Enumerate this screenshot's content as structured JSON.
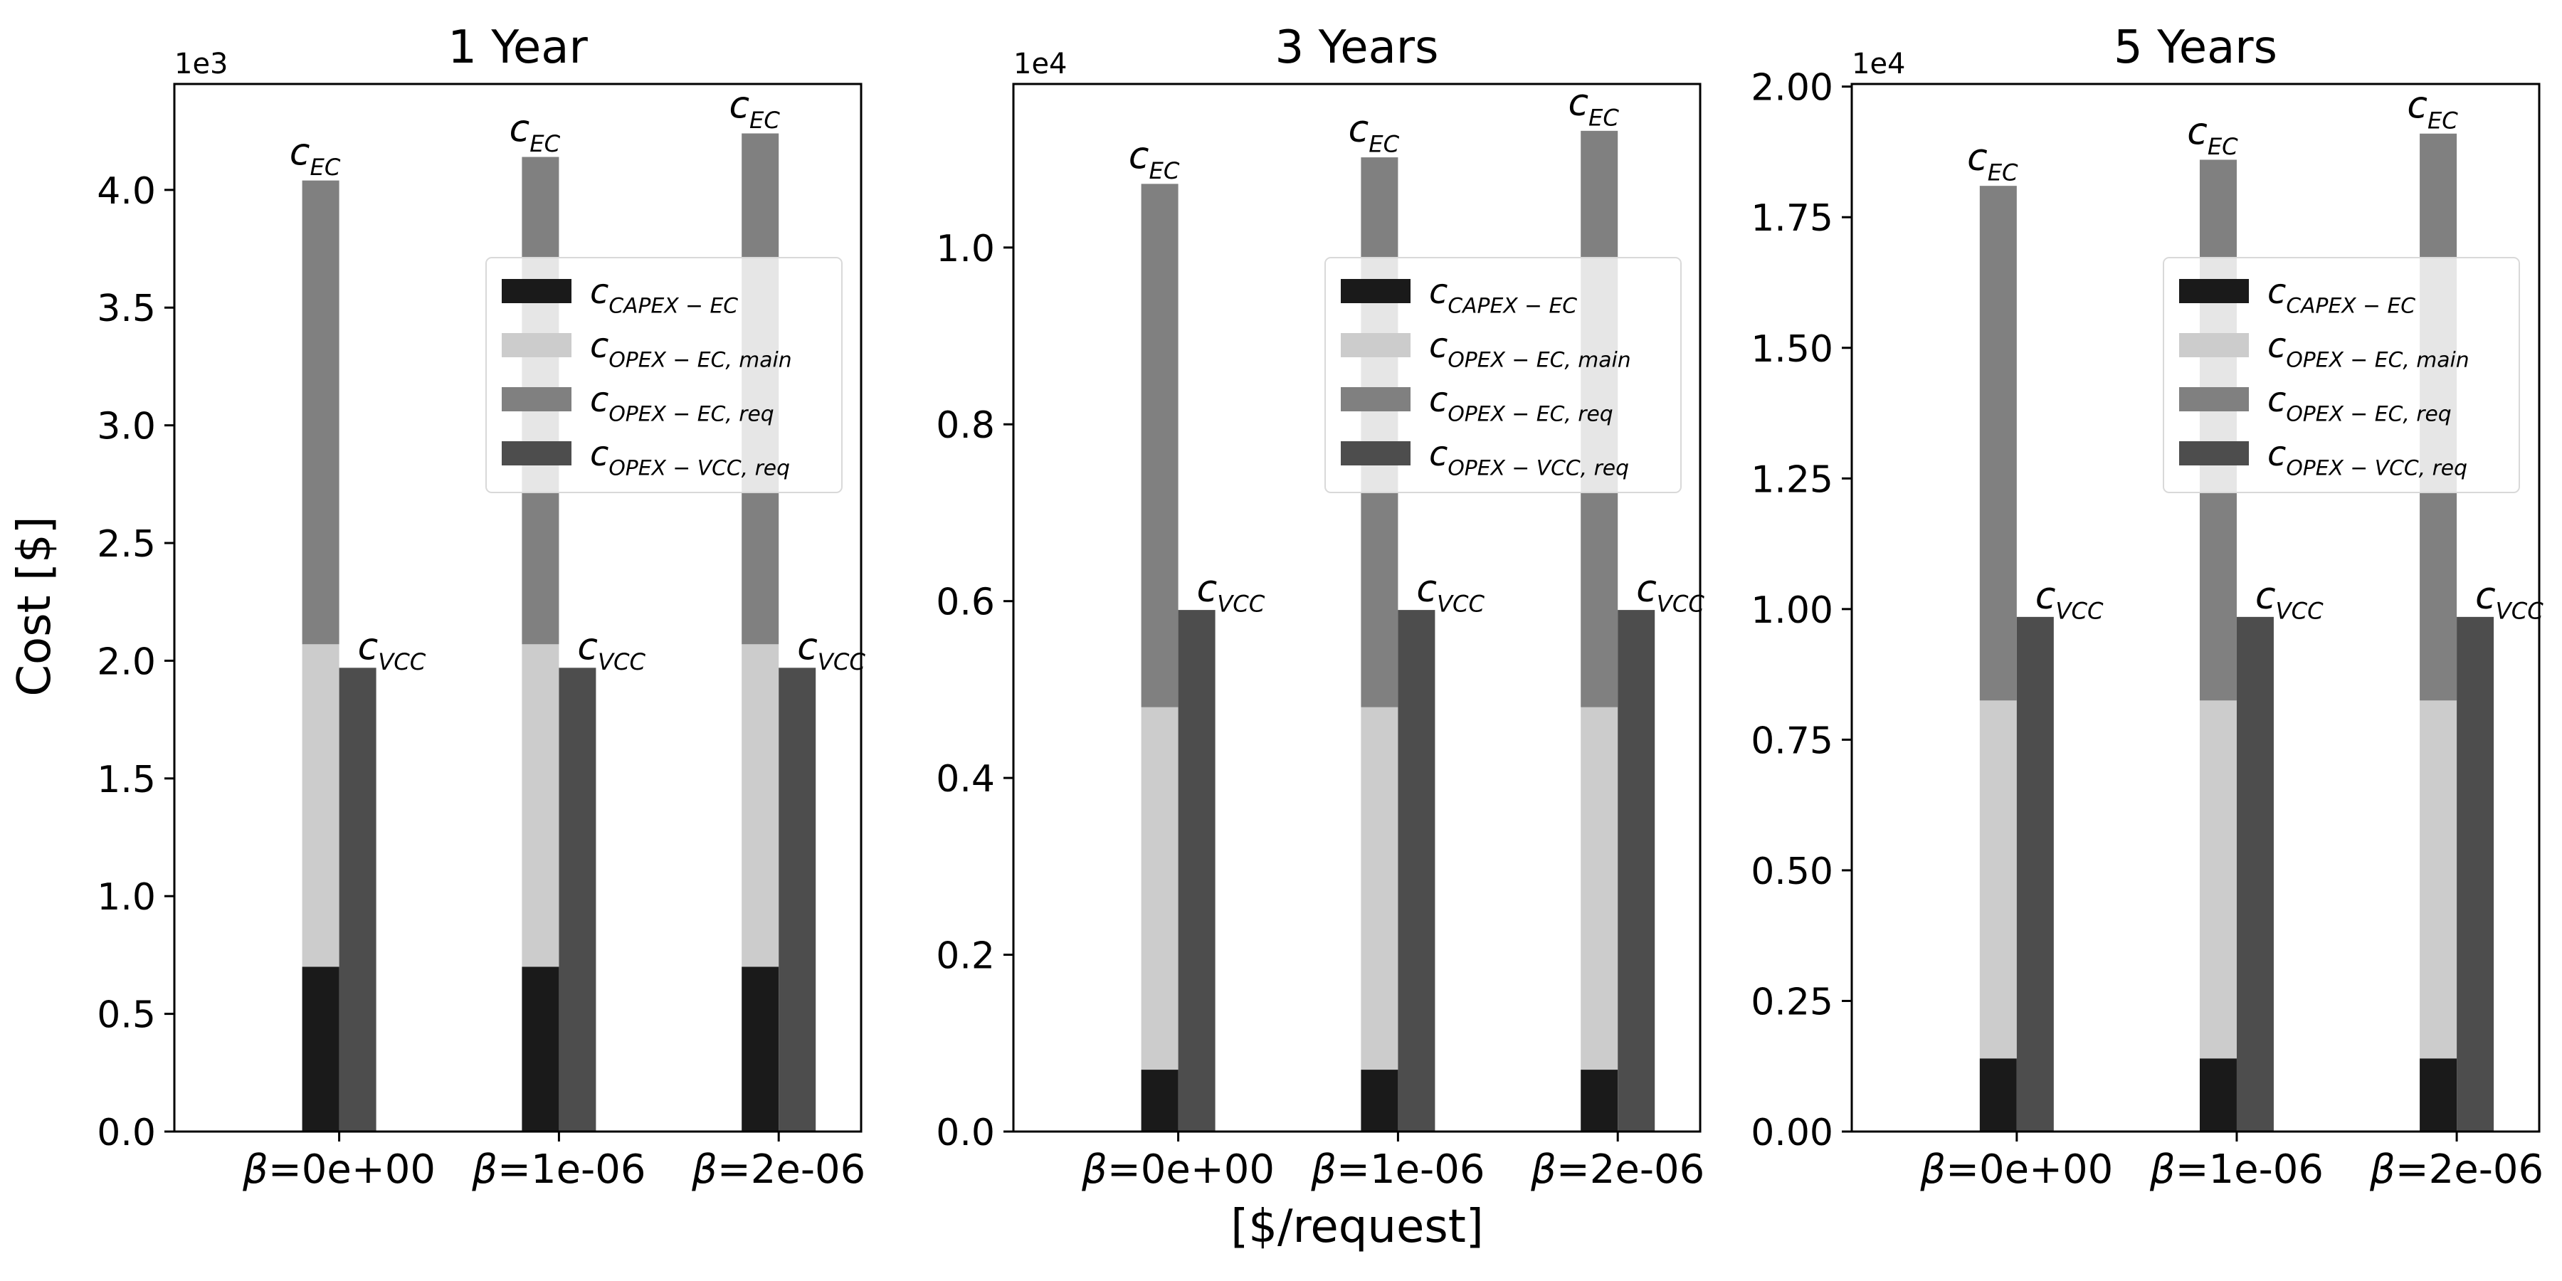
{
  "figure": {
    "ylabel": "Cost [$]",
    "xlabel": "[$/request]"
  },
  "chart_data": [
    {
      "type": "bar",
      "title": "1 Year",
      "categories": [
        "β=0e+00",
        "β=1e-06",
        "β=2e-06"
      ],
      "offset_text": "1e3",
      "ylim": [
        0,
        4.45
      ],
      "yticks": [
        "0.0",
        "0.5",
        "1.0",
        "1.5",
        "2.0",
        "2.5",
        "3.0",
        "3.5",
        "4.0"
      ],
      "ytick_values": [
        0,
        0.5,
        1.0,
        1.5,
        2.0,
        2.5,
        3.0,
        3.5,
        4.0
      ],
      "grid": false,
      "legend_placement": "center-right",
      "stacks": [
        {
          "label_main": "c",
          "label_sub": "EC",
          "series": [
            {
              "name_main": "c",
              "name_sub": "CAPEX − EC",
              "color": "#1a1a1a",
              "values": [
                0.7,
                0.7,
                0.7
              ]
            },
            {
              "name_main": "c",
              "name_sub": "OPEX − EC, main",
              "color": "#cccccc",
              "values": [
                1.37,
                1.37,
                1.37
              ]
            },
            {
              "name_main": "c",
              "name_sub": "OPEX − EC, req",
              "color": "#808080",
              "values": [
                1.97,
                2.07,
                2.17
              ]
            }
          ]
        },
        {
          "label_main": "c",
          "label_sub": "VCC",
          "series": [
            {
              "name_main": "c",
              "name_sub": "OPEX − VCC, req",
              "color": "#4d4d4d",
              "values": [
                1.97,
                1.97,
                1.97
              ]
            }
          ]
        }
      ]
    },
    {
      "type": "bar",
      "title": "3 Years",
      "categories": [
        "β=0e+00",
        "β=1e-06",
        "β=2e-06"
      ],
      "offset_text": "1e4",
      "ylim": [
        0,
        1.185
      ],
      "yticks": [
        "0.0",
        "0.2",
        "0.4",
        "0.6",
        "0.8",
        "1.0"
      ],
      "ytick_values": [
        0,
        0.2,
        0.4,
        0.6,
        0.8,
        1.0
      ],
      "grid": false,
      "legend_placement": "center-right",
      "stacks": [
        {
          "label_main": "c",
          "label_sub": "EC",
          "series": [
            {
              "name_main": "c",
              "name_sub": "CAPEX − EC",
              "color": "#1a1a1a",
              "values": [
                0.07,
                0.07,
                0.07
              ]
            },
            {
              "name_main": "c",
              "name_sub": "OPEX − EC, main",
              "color": "#cccccc",
              "values": [
                0.41,
                0.41,
                0.41
              ]
            },
            {
              "name_main": "c",
              "name_sub": "OPEX − EC, req",
              "color": "#808080",
              "values": [
                0.592,
                0.622,
                0.652
              ]
            }
          ]
        },
        {
          "label_main": "c",
          "label_sub": "VCC",
          "series": [
            {
              "name_main": "c",
              "name_sub": "OPEX − VCC, req",
              "color": "#4d4d4d",
              "values": [
                0.59,
                0.59,
                0.59
              ]
            }
          ]
        }
      ]
    },
    {
      "type": "bar",
      "title": "5 Years",
      "categories": [
        "β=0e+00",
        "β=1e-06",
        "β=2e-06"
      ],
      "offset_text": "1e4",
      "ylim": [
        0,
        2.005
      ],
      "yticks": [
        "0.00",
        "0.25",
        "0.50",
        "0.75",
        "1.00",
        "1.25",
        "1.50",
        "1.75",
        "2.00"
      ],
      "ytick_values": [
        0,
        0.25,
        0.5,
        0.75,
        1.0,
        1.25,
        1.5,
        1.75,
        2.0
      ],
      "grid": false,
      "legend_placement": "center-right",
      "stacks": [
        {
          "label_main": "c",
          "label_sub": "EC",
          "series": [
            {
              "name_main": "c",
              "name_sub": "CAPEX − EC",
              "color": "#1a1a1a",
              "values": [
                0.14,
                0.14,
                0.14
              ]
            },
            {
              "name_main": "c",
              "name_sub": "OPEX − EC, main",
              "color": "#cccccc",
              "values": [
                0.685,
                0.685,
                0.685
              ]
            },
            {
              "name_main": "c",
              "name_sub": "OPEX − EC, req",
              "color": "#808080",
              "values": [
                0.985,
                1.035,
                1.085
              ]
            }
          ]
        },
        {
          "label_main": "c",
          "label_sub": "VCC",
          "series": [
            {
              "name_main": "c",
              "name_sub": "OPEX − VCC, req",
              "color": "#4d4d4d",
              "values": [
                0.985,
                0.985,
                0.985
              ]
            }
          ]
        }
      ]
    }
  ]
}
